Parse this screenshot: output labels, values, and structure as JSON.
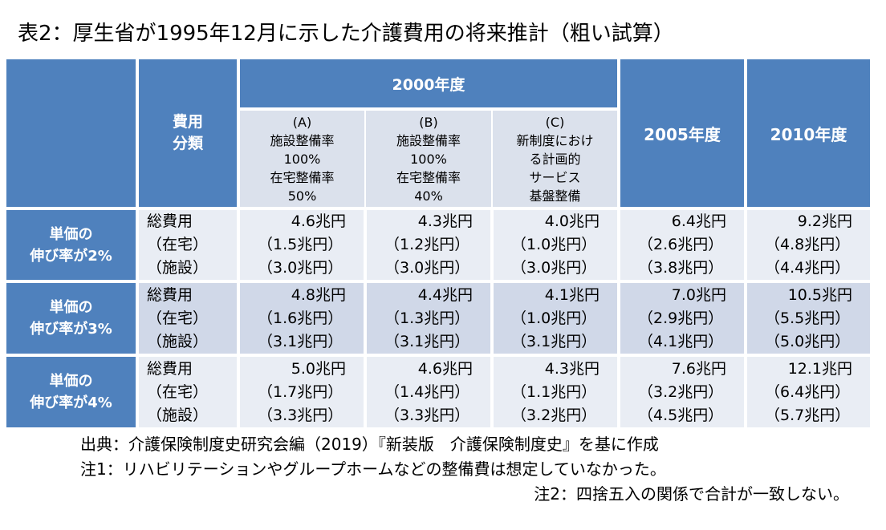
{
  "title": "表2：厚生省が1995年12月に示した介護費用の将来推計（粗い試算）",
  "table": {
    "header_category": "費用\n分類",
    "header_2000": "2000年度",
    "header_2005": "2005年度",
    "header_2010": "2010年度",
    "scenarios": [
      {
        "tag": "(A)",
        "lines": "施設整備率\n100%\n在宅整備率\n50%"
      },
      {
        "tag": "(B)",
        "lines": "施設整備率\n100%\n在宅整備率\n40%"
      },
      {
        "tag": "(C)",
        "lines": "新制度におけ\nる計画的\nサービス\n基盤整備"
      }
    ],
    "item_labels": [
      "総費用",
      "（在宅）",
      "（施設）"
    ],
    "rows": [
      {
        "label_line1": "単価の",
        "label_line2": "伸び率が2%",
        "cols": [
          [
            "4.6兆円",
            "（1.5兆円）",
            "（3.0兆円）"
          ],
          [
            "4.3兆円",
            "（1.2兆円）",
            "（3.0兆円）"
          ],
          [
            "4.0兆円",
            "（1.0兆円）",
            "（3.0兆円）"
          ],
          [
            "6.4兆円",
            "（2.6兆円）",
            "（3.8兆円）"
          ],
          [
            "9.2兆円",
            "（4.8兆円）",
            "（4.4兆円）"
          ]
        ]
      },
      {
        "label_line1": "単価の",
        "label_line2": "伸び率が3%",
        "cols": [
          [
            "4.8兆円",
            "（1.6兆円）",
            "（3.1兆円）"
          ],
          [
            "4.4兆円",
            "（1.3兆円）",
            "（3.1兆円）"
          ],
          [
            "4.1兆円",
            "（1.0兆円）",
            "（3.1兆円）"
          ],
          [
            "7.0兆円",
            "（2.9兆円）",
            "（4.1兆円）"
          ],
          [
            "10.5兆円",
            "（5.5兆円）",
            "（5.0兆円）"
          ]
        ]
      },
      {
        "label_line1": "単価の",
        "label_line2": "伸び率が4%",
        "cols": [
          [
            "5.0兆円",
            "（1.7兆円）",
            "（3.3兆円）"
          ],
          [
            "4.6兆円",
            "（1.4兆円）",
            "（3.3兆円）"
          ],
          [
            "4.3兆円",
            "（1.1兆円）",
            "（3.2兆円）"
          ],
          [
            "7.6兆円",
            "（3.2兆円）",
            "（4.5兆円）"
          ],
          [
            "12.1兆円",
            "（6.4兆円）",
            "（5.7兆円）"
          ]
        ]
      }
    ]
  },
  "notes": {
    "source": "出典：介護保険制度史研究会編（2019）『新装版　介護保険制度史』を基に作成",
    "note1": "注1：リハビリテーションやグループホームなどの整備費は想定していなかった。",
    "note2": "注2：四捨五入の関係で合計が一致しない。"
  }
}
